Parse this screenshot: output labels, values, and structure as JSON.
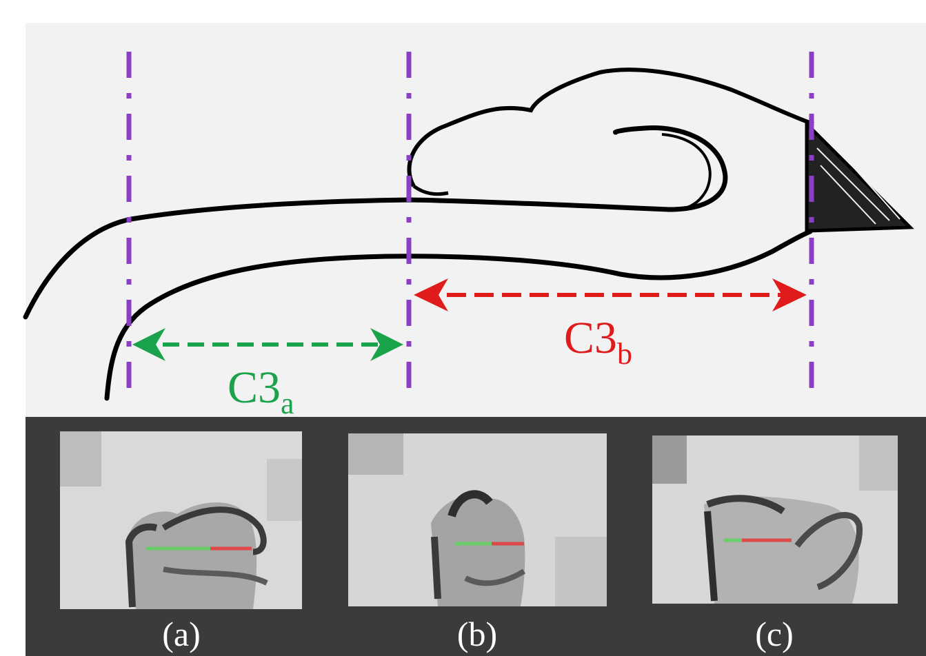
{
  "labels": {
    "region_a": {
      "main": "C3",
      "sub": "a",
      "color": "#1aa34a"
    },
    "region_b": {
      "main": "C3",
      "sub": "b",
      "color": "#e01b1b"
    }
  },
  "panels": [
    {
      "id": "a",
      "caption": "(a)"
    },
    {
      "id": "b",
      "caption": "(b)"
    },
    {
      "id": "c",
      "caption": "(c)"
    }
  ],
  "colors": {
    "boundary": "#8a3fc6",
    "ink": "#000000",
    "panel_bg": "#3b3b3b",
    "green_line": "#5fd35f",
    "red_line": "#e83a3a"
  }
}
